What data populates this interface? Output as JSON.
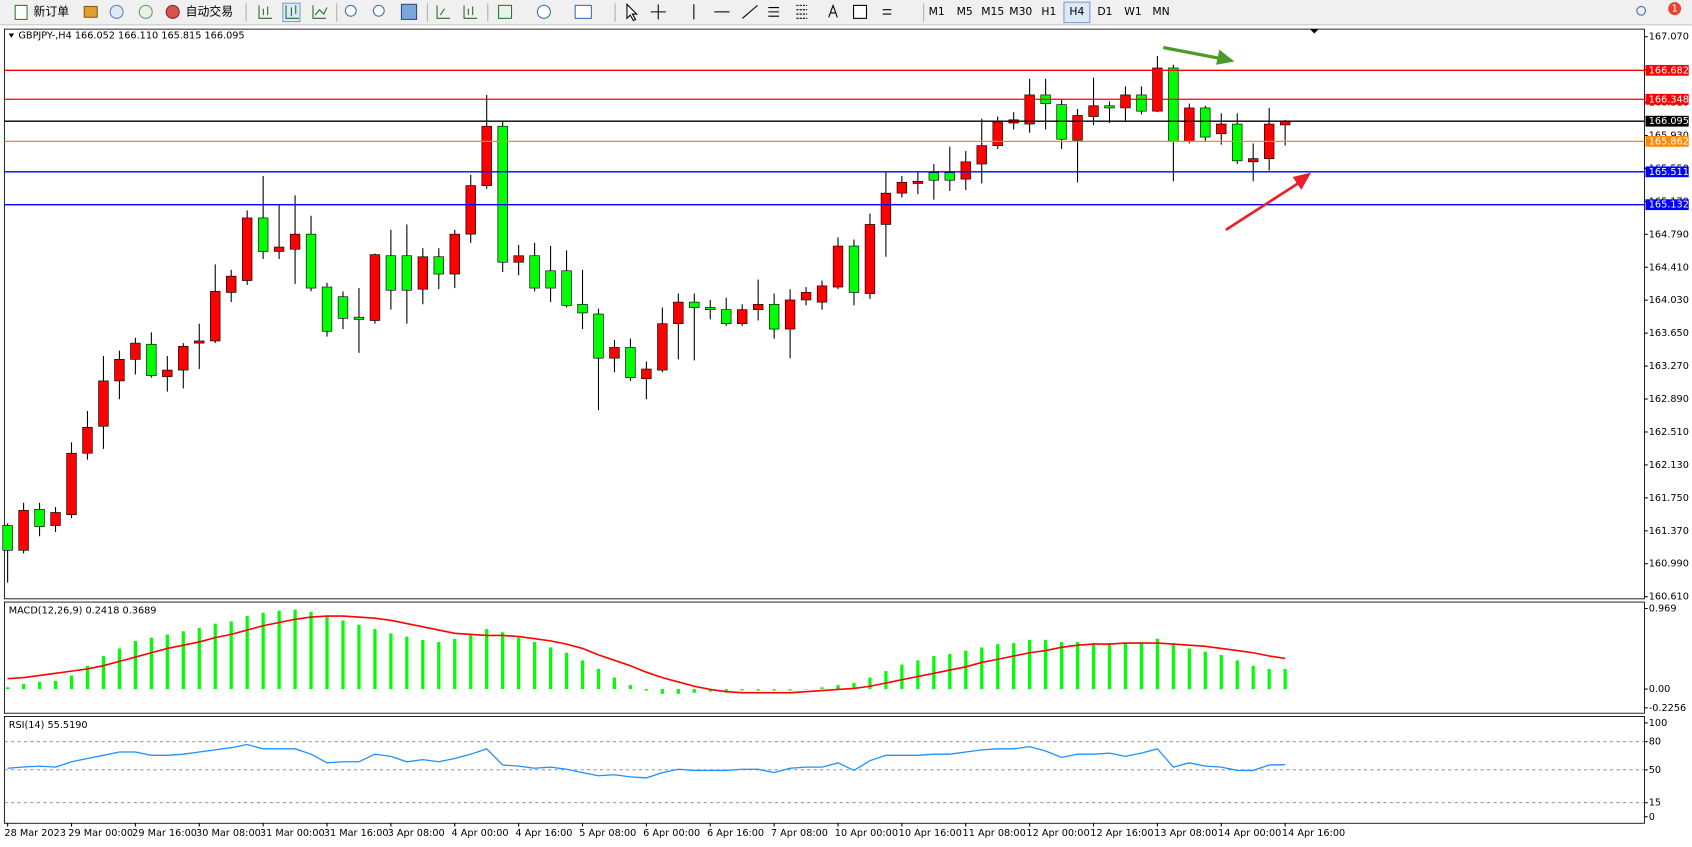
{
  "toolbar": {
    "new_order": "新订单",
    "auto_trading": "自动交易",
    "timeframes": [
      "M1",
      "M5",
      "M15",
      "M30",
      "H1",
      "H4",
      "D1",
      "W1",
      "MN"
    ],
    "selected_timeframe": "H4",
    "notifications": 1
  },
  "chart_data": [
    {
      "type": "candlestick",
      "title": "GBPJPY-,H4 166.052 166.110 165.815 166.095",
      "categories": [
        "28 Mar 2023",
        null,
        null,
        null,
        "29 Mar 00:00",
        null,
        null,
        null,
        "29 Mar 16:00",
        null,
        null,
        null,
        "30 Mar 08:00",
        null,
        null,
        null,
        "31 Mar 00:00",
        null,
        null,
        null,
        "31 Mar 16:00",
        null,
        null,
        null,
        "3 Apr 08:00",
        null,
        null,
        null,
        "4 Apr 00:00",
        null,
        null,
        null,
        "4 Apr 16:00",
        null,
        null,
        null,
        "5 Apr 08:00",
        null,
        null,
        null,
        "6 Apr 00:00",
        null,
        null,
        null,
        "6 Apr 16:00",
        null,
        null,
        null,
        "7 Apr 08:00",
        null,
        null,
        null,
        "10 Apr 00:00",
        null,
        null,
        null,
        "10 Apr 16:00",
        null,
        null,
        null,
        "11 Apr 08:00",
        null,
        null,
        null,
        "12 Apr 00:00",
        null,
        null,
        null,
        "12 Apr 16:00",
        null,
        null,
        null,
        "13 Apr 08:00",
        null,
        null,
        null,
        "14 Apr 00:00",
        null,
        null,
        null,
        "14 Apr 16:00"
      ],
      "open": [
        161.431,
        161.145,
        161.618,
        161.431,
        161.556,
        162.265,
        162.576,
        163.099,
        163.348,
        163.522,
        163.149,
        163.224,
        163.535,
        163.56,
        164.12,
        164.257,
        164.979,
        164.593,
        164.618,
        164.792,
        164.182,
        164.07,
        163.834,
        163.796,
        164.543,
        164.543,
        164.157,
        164.531,
        164.332,
        164.792,
        165.352,
        166.037,
        164.468,
        164.543,
        164.369,
        164.369,
        163.983,
        163.871,
        163.361,
        163.485,
        163.124,
        163.224,
        163.759,
        164.008,
        163.946,
        163.921,
        163.759,
        163.921,
        163.983,
        163.697,
        164.033,
        164.008,
        164.182,
        164.655,
        164.107,
        164.904,
        165.265,
        165.377,
        165.502,
        165.502,
        165.427,
        165.601,
        165.813,
        166.074,
        166.062,
        166.398,
        166.286,
        165.875,
        166.149,
        166.273,
        166.248,
        166.398,
        166.211,
        166.709,
        165.862,
        166.248,
        165.95,
        166.062,
        165.626,
        165.663,
        166.052
      ],
      "high": [
        161.456,
        161.693,
        161.693,
        161.643,
        162.39,
        162.751,
        163.386,
        163.448,
        163.597,
        163.659,
        163.386,
        163.535,
        163.759,
        164.444,
        164.381,
        165.066,
        165.464,
        165.128,
        165.24,
        165.004,
        164.232,
        164.132,
        164.17,
        164.568,
        164.842,
        164.904,
        164.63,
        164.63,
        164.842,
        165.477,
        166.398,
        166.087,
        164.668,
        164.692,
        164.655,
        164.605,
        164.381,
        163.933,
        163.572,
        163.585,
        163.323,
        163.946,
        164.107,
        164.107,
        164.033,
        164.058,
        163.983,
        164.269,
        164.107,
        164.157,
        164.182,
        164.257,
        164.755,
        164.73,
        165.029,
        165.502,
        165.464,
        165.514,
        165.601,
        165.8,
        165.75,
        166.124,
        166.149,
        166.199,
        166.584,
        166.584,
        166.348,
        166.236,
        166.597,
        166.323,
        166.497,
        166.497,
        166.846,
        166.746,
        166.298,
        166.273,
        166.186,
        166.186,
        165.838,
        166.248,
        166.11
      ],
      "low": [
        160.772,
        161.108,
        161.307,
        161.357,
        161.518,
        162.191,
        162.315,
        162.888,
        163.174,
        163.137,
        162.975,
        163.012,
        163.236,
        163.535,
        164.008,
        164.207,
        164.506,
        164.506,
        164.219,
        164.132,
        163.61,
        163.697,
        163.423,
        163.759,
        163.921,
        163.759,
        163.983,
        164.157,
        164.17,
        164.692,
        165.315,
        164.356,
        164.319,
        164.132,
        164.008,
        163.946,
        163.697,
        162.763,
        163.199,
        163.099,
        162.888,
        163.199,
        163.348,
        163.336,
        163.809,
        163.734,
        163.734,
        163.796,
        163.585,
        163.361,
        163.97,
        163.921,
        164.157,
        163.97,
        164.045,
        164.531,
        165.215,
        165.253,
        165.19,
        165.29,
        165.302,
        165.377,
        165.775,
        166.0,
        165.962,
        166.0,
        165.775,
        165.39,
        166.049,
        166.074,
        166.099,
        166.174,
        166.199,
        165.402,
        165.838,
        165.862,
        165.825,
        165.601,
        165.402,
        165.526,
        165.815
      ],
      "close": [
        161.145,
        161.606,
        161.419,
        161.581,
        162.265,
        162.564,
        163.099,
        163.348,
        163.535,
        163.161,
        163.224,
        163.498,
        163.56,
        164.132,
        164.307,
        164.979,
        164.593,
        164.643,
        164.792,
        164.17,
        163.672,
        163.821,
        163.809,
        164.556,
        164.145,
        164.145,
        164.531,
        164.332,
        164.792,
        165.352,
        166.037,
        164.468,
        164.543,
        164.17,
        164.17,
        163.97,
        163.883,
        163.361,
        163.485,
        163.137,
        163.236,
        163.759,
        164.008,
        163.946,
        163.921,
        163.759,
        163.921,
        163.983,
        163.697,
        164.033,
        164.12,
        164.195,
        164.655,
        164.12,
        164.904,
        165.265,
        165.39,
        165.402,
        165.414,
        165.414,
        165.626,
        165.813,
        166.087,
        166.111,
        166.398,
        166.298,
        165.887,
        166.161,
        166.273,
        166.248,
        166.398,
        166.211,
        166.709,
        165.862,
        166.248,
        165.912,
        166.062,
        165.638,
        165.663,
        166.062,
        166.095
      ],
      "up_color": "#ff0000",
      "down_color": "#00ff00",
      "hlines": [
        {
          "value": 166.682,
          "color": "#ff0000"
        },
        {
          "value": 166.348,
          "color": "#ff0000"
        },
        {
          "value": 166.095,
          "color": "#000000"
        },
        {
          "value": 165.862,
          "color": "#ff8c00"
        },
        {
          "value": 165.511,
          "color": "#0000ff"
        },
        {
          "value": 165.132,
          "color": "#0000ff"
        }
      ],
      "ylim": [
        160.61,
        167.07
      ],
      "yticks": [
        {
          "value": 160.61,
          "label": "160.610"
        },
        {
          "value": 160.99,
          "label": "160.990"
        },
        {
          "value": 161.37,
          "label": "161.370"
        },
        {
          "value": 161.75,
          "label": "161.750"
        },
        {
          "value": 162.13,
          "label": "162.130"
        },
        {
          "value": 162.51,
          "label": "162.510"
        },
        {
          "value": 162.89,
          "label": "162.890"
        },
        {
          "value": 163.27,
          "label": "163.270"
        },
        {
          "value": 163.65,
          "label": "163.650"
        },
        {
          "value": 164.03,
          "label": "164.030"
        },
        {
          "value": 164.41,
          "label": "164.410"
        },
        {
          "value": 164.79,
          "label": "164.790"
        },
        {
          "value": 165.17,
          "label": "165.170"
        },
        {
          "value": 165.55,
          "label": "165.550"
        },
        {
          "value": 165.93,
          "label": "165.930"
        },
        {
          "value": 166.31,
          "label": "166.310"
        },
        {
          "value": 166.69,
          "label": "166.690"
        },
        {
          "value": 167.07,
          "label": "167.070"
        }
      ]
    },
    {
      "type": "macd",
      "title": "MACD(12,26,9) 0.2418 0.3689",
      "histogram": [
        0.021,
        0.06,
        0.086,
        0.099,
        0.164,
        0.28,
        0.397,
        0.488,
        0.579,
        0.618,
        0.657,
        0.696,
        0.735,
        0.787,
        0.813,
        0.878,
        0.917,
        0.943,
        0.956,
        0.93,
        0.878,
        0.826,
        0.774,
        0.722,
        0.67,
        0.631,
        0.592,
        0.566,
        0.605,
        0.67,
        0.722,
        0.683,
        0.618,
        0.566,
        0.501,
        0.436,
        0.345,
        0.242,
        0.138,
        0.047,
        -0.018,
        -0.057,
        -0.057,
        -0.044,
        -0.031,
        -0.031,
        -0.018,
        -0.018,
        -0.018,
        -0.018,
        -0.005,
        0.021,
        0.047,
        0.073,
        0.138,
        0.216,
        0.294,
        0.345,
        0.397,
        0.423,
        0.462,
        0.501,
        0.54,
        0.553,
        0.592,
        0.592,
        0.566,
        0.566,
        0.553,
        0.553,
        0.553,
        0.566,
        0.605,
        0.54,
        0.488,
        0.449,
        0.41,
        0.345,
        0.28,
        0.242,
        0.2418
      ],
      "signal": [
        0.125,
        0.138,
        0.164,
        0.19,
        0.216,
        0.242,
        0.281,
        0.333,
        0.385,
        0.437,
        0.489,
        0.528,
        0.567,
        0.619,
        0.658,
        0.71,
        0.762,
        0.801,
        0.84,
        0.866,
        0.879,
        0.879,
        0.866,
        0.853,
        0.827,
        0.788,
        0.749,
        0.71,
        0.671,
        0.658,
        0.645,
        0.645,
        0.632,
        0.606,
        0.58,
        0.541,
        0.489,
        0.411,
        0.346,
        0.281,
        0.203,
        0.138,
        0.086,
        0.034,
        -0.005,
        -0.031,
        -0.044,
        -0.044,
        -0.044,
        -0.044,
        -0.031,
        -0.018,
        -0.005,
        0.008,
        0.034,
        0.073,
        0.112,
        0.151,
        0.19,
        0.229,
        0.268,
        0.32,
        0.359,
        0.398,
        0.437,
        0.463,
        0.502,
        0.528,
        0.541,
        0.541,
        0.554,
        0.554,
        0.554,
        0.541,
        0.528,
        0.515,
        0.489,
        0.463,
        0.437,
        0.398,
        0.3689
      ],
      "histogram_color": "#00ff00",
      "signal_color": "#ff0000",
      "ylim": [
        -0.2256,
        0.969
      ],
      "yticks": [
        -0.2256,
        {
          "value": 0,
          "label": "0.00"
        },
        0.969
      ]
    },
    {
      "type": "line",
      "title": "RSI(14) 55.5190",
      "values": [
        51.7,
        53.0,
        54.0,
        52.9,
        58.6,
        62.1,
        65.5,
        69.0,
        69.0,
        65.5,
        65.5,
        66.7,
        69.0,
        71.3,
        73.6,
        77.0,
        72.4,
        72.4,
        72.4,
        66.7,
        57.5,
        58.6,
        58.6,
        66.7,
        64.4,
        58.6,
        60.9,
        58.6,
        62.1,
        66.7,
        72.4,
        55.2,
        54.0,
        51.7,
        52.9,
        50.6,
        47.1,
        43.7,
        44.8,
        42.5,
        41.4,
        47.1,
        50.6,
        49.4,
        49.4,
        49.4,
        50.6,
        50.6,
        47.1,
        51.7,
        52.9,
        52.9,
        57.5,
        49.4,
        59.8,
        65.5,
        65.5,
        65.5,
        66.7,
        66.7,
        69.0,
        71.3,
        72.4,
        72.4,
        74.7,
        70.1,
        63.2,
        66.7,
        66.7,
        67.8,
        64.4,
        67.8,
        72.4,
        52.9,
        57.5,
        54.0,
        52.9,
        49.4,
        49.4,
        55.2,
        55.519
      ],
      "color": "#1e90ff",
      "ylim": [
        0,
        100
      ],
      "yticks": [
        0,
        15,
        50,
        80,
        100
      ]
    }
  ]
}
